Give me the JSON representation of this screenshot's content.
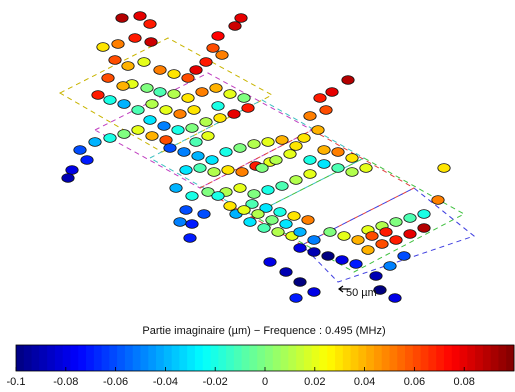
{
  "chart_data": {
    "type": "scatter",
    "title": "Partie imaginaire (µm) − Frequence :  0.495 (MHz)",
    "scale_label": "50 µm",
    "colorbar": {
      "colormap": "jet",
      "range": [
        -0.1,
        0.1
      ],
      "ticks": [
        "-0.1",
        "-0.08",
        "-0.06",
        "-0.04",
        "-0.02",
        "0",
        "0.02",
        "0.04",
        "0.06",
        "0.08"
      ]
    },
    "regions": [
      {
        "color": "#c8b400"
      },
      {
        "color": "#c040c0"
      },
      {
        "color": "#40c0c0"
      },
      {
        "color": "#e04040"
      },
      {
        "color": "#40c040"
      },
      {
        "color": "#4040e0"
      }
    ],
    "values": [
      0.09,
      0.08,
      0.07,
      0.08,
      0.085,
      0.075,
      0.06,
      0.05,
      0.07,
      0.08,
      0.03,
      0.05,
      0.07,
      0.085,
      0.06,
      0.04,
      0.02,
      0.05,
      0.03,
      0.06,
      0.02,
      0.0,
      -0.01,
      0.01,
      0.03,
      0.05,
      0.04,
      0.02,
      0.0,
      -0.02,
      0.06,
      0.04,
      0.07,
      -0.02,
      -0.04,
      -0.01,
      0.01,
      0.02,
      0.05,
      0.03,
      -0.03,
      -0.05,
      -0.02,
      0.0,
      0.01,
      0.03,
      0.08,
      0.07,
      0.02,
      -0.01,
      -0.06,
      -0.04,
      -0.02,
      0.0,
      0.02,
      0.04,
      0.06,
      -0.08,
      -0.09,
      -0.07,
      -0.06,
      -0.05,
      -0.04,
      -0.03,
      -0.02,
      0.0,
      0.01,
      0.02,
      0.04,
      0.03,
      -0.03,
      -0.01,
      0.01,
      0.03,
      0.05,
      0.07,
      0.02,
      -0.04,
      -0.02,
      0.0,
      0.09,
      0.08,
      0.07,
      0.06,
      0.05,
      0.04,
      0.03,
      0.02,
      0.01,
      0.0,
      -0.02,
      -0.03,
      -0.01,
      0.01,
      0.02,
      0.03,
      0.05,
      0.04,
      0.02,
      0.01,
      -0.01,
      -0.02,
      0.0,
      0.02,
      0.01,
      -0.01,
      -0.03,
      -0.02,
      0.03,
      0.05,
      -0.04,
      -0.03,
      -0.01,
      0.01,
      0.02,
      -0.06,
      -0.05,
      -0.07,
      -0.08,
      -0.09,
      -0.1,
      -0.08,
      -0.07,
      0.04,
      0.06,
      0.07,
      0.08,
      0.09,
      0.05,
      0.03,
      0.02,
      0.01,
      0.0,
      -0.01,
      -0.02,
      0.0,
      0.02,
      0.04,
      0.06,
      0.07,
      -0.05,
      -0.04,
      -0.03,
      0.0,
      0.01,
      0.02,
      0.03,
      -0.02,
      -0.06,
      -0.07,
      -0.08,
      -0.09,
      -0.1,
      -0.08,
      -0.07,
      -0.06,
      -0.05,
      -0.09,
      -0.1,
      -0.08
    ]
  }
}
